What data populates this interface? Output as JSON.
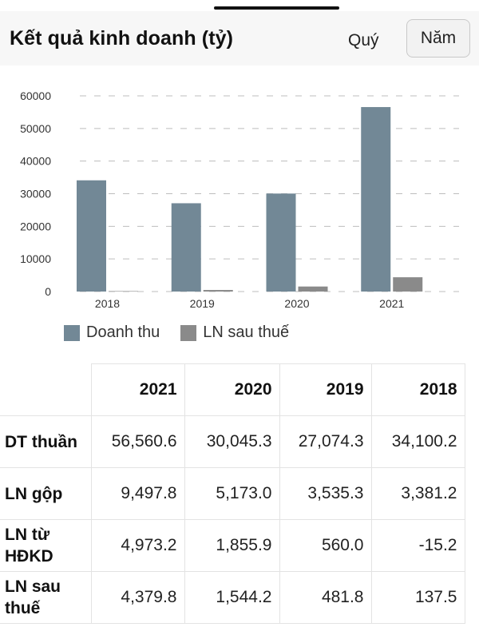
{
  "header": {
    "title": "Kết quả kinh doanh (tỷ)",
    "period_options": [
      "Quý",
      "Năm"
    ],
    "selected_period": "Năm"
  },
  "chart_data": {
    "type": "bar",
    "categories": [
      "2018",
      "2019",
      "2020",
      "2021"
    ],
    "series": [
      {
        "name": "Doanh thu",
        "color": "#728896",
        "values": [
          34100.2,
          27074.3,
          30045.3,
          56560.6
        ]
      },
      {
        "name": "LN sau thuế",
        "color": "#8a8a8a",
        "values": [
          137.5,
          481.8,
          1544.2,
          4379.8
        ]
      }
    ],
    "yticks": [
      "0",
      "10000",
      "20000",
      "30000",
      "40000",
      "50000",
      "60000"
    ],
    "ylim": [
      0,
      60000
    ],
    "grid": true,
    "legend_position": "bottom-left"
  },
  "table": {
    "columns": [
      "",
      "2021",
      "2020",
      "2019",
      "2018"
    ],
    "rows": [
      {
        "label": "DT thuần",
        "values": [
          "56,560.6",
          "30,045.3",
          "27,074.3",
          "34,100.2"
        ]
      },
      {
        "label": "LN gộp",
        "values": [
          "9,497.8",
          "5,173.0",
          "3,535.3",
          "3,381.2"
        ]
      },
      {
        "label": "LN từ HĐKD",
        "values": [
          "4,973.2",
          "1,855.9",
          "560.0",
          "-15.2"
        ]
      },
      {
        "label": "LN sau thuế",
        "values": [
          "4,379.8",
          "1,544.2",
          "481.8",
          "137.5"
        ]
      }
    ]
  }
}
